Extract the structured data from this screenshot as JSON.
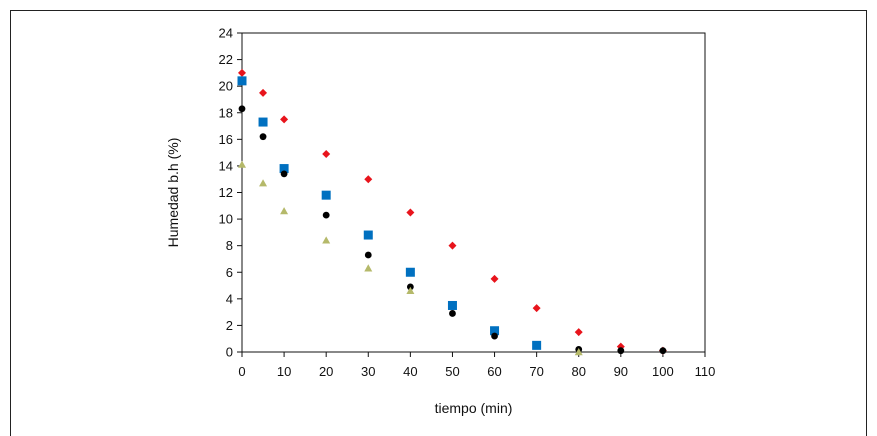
{
  "chart_data": {
    "type": "scatter",
    "title": "",
    "xlabel": "tiempo (min)",
    "ylabel": "Humedad b.h (%)",
    "xlim": [
      0,
      110
    ],
    "ylim": [
      0,
      24
    ],
    "xticks": [
      0,
      10,
      20,
      30,
      40,
      50,
      60,
      70,
      80,
      90,
      100,
      110
    ],
    "yticks": [
      0,
      2,
      4,
      6,
      8,
      10,
      12,
      14,
      16,
      18,
      20,
      22,
      24
    ],
    "grid": false,
    "legend": "none",
    "series": [
      {
        "marker": "diamond",
        "color": "#e8141c",
        "x": [
          0,
          5,
          10,
          20,
          30,
          40,
          50,
          60,
          70,
          80,
          90,
          100
        ],
        "y": [
          21.0,
          19.5,
          17.5,
          14.9,
          13.0,
          10.5,
          8.0,
          5.5,
          3.3,
          1.5,
          0.4,
          0.1
        ]
      },
      {
        "marker": "square",
        "color": "#0070c0",
        "x": [
          0,
          5,
          10,
          20,
          30,
          40,
          50,
          60,
          70
        ],
        "y": [
          20.4,
          17.3,
          13.8,
          11.8,
          8.8,
          6.0,
          3.5,
          1.6,
          0.5
        ]
      },
      {
        "marker": "circle",
        "color": "#000000",
        "x": [
          0,
          5,
          10,
          20,
          30,
          40,
          50,
          60,
          80,
          90,
          100
        ],
        "y": [
          18.3,
          16.2,
          13.4,
          10.3,
          7.3,
          4.9,
          2.9,
          1.2,
          0.2,
          0.1,
          0.1
        ]
      },
      {
        "marker": "triangle",
        "color": "#b5b96a",
        "x": [
          0,
          5,
          10,
          20,
          30,
          40,
          80
        ],
        "y": [
          14.1,
          12.7,
          10.6,
          8.4,
          6.3,
          4.6,
          0.0
        ]
      }
    ]
  }
}
